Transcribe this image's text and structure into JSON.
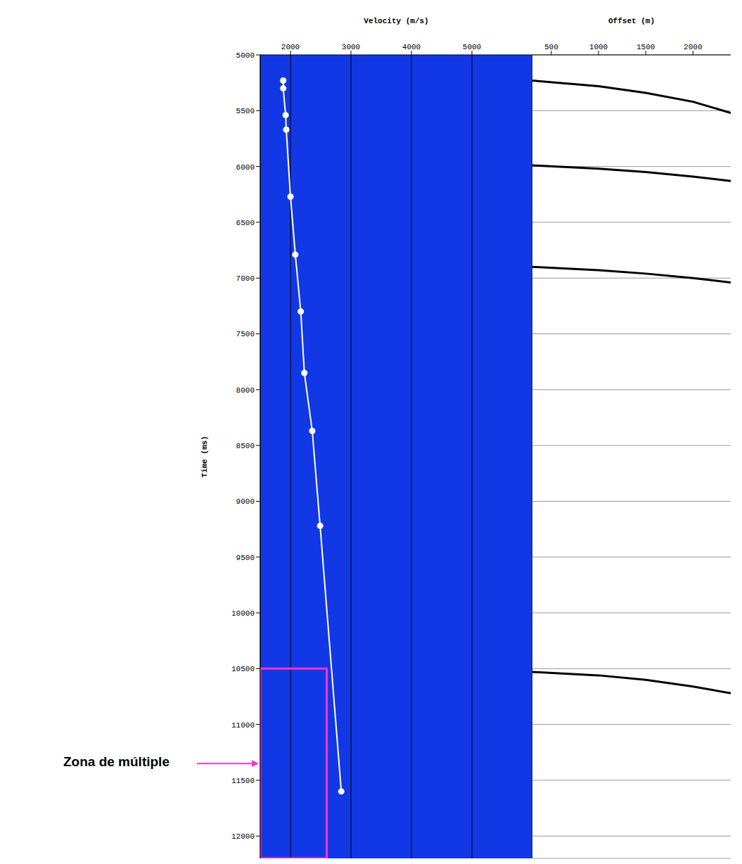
{
  "chart_data": [
    {
      "type": "scatter",
      "x_label": "Velocity (m/s)",
      "y_label": "Time (ms)",
      "xlim": [
        1500,
        6000
      ],
      "xticks": [
        2000,
        3000,
        4000,
        5000
      ],
      "ylim": [
        5000,
        12200
      ],
      "yticks": [
        5000,
        5500,
        6000,
        6500,
        7000,
        7500,
        8000,
        8500,
        9000,
        9500,
        10000,
        10500,
        11000,
        11500,
        12000
      ],
      "grid": true,
      "series": [
        {
          "color": "#ffffff",
          "marker": "circle",
          "line_style": "solid",
          "x": [
            1880,
            1880,
            1920,
            1930,
            2000,
            2080,
            2170,
            2230,
            2360,
            2490,
            2840
          ],
          "values": [
            5230,
            5300,
            5540,
            5670,
            6270,
            6790,
            7300,
            7850,
            8370,
            9220,
            11600
          ]
        }
      ],
      "annotations": [
        {
          "text": "Zona de múltiple",
          "color": "#ff33cc",
          "x_range": [
            1500,
            2600
          ],
          "y_range": [
            10500,
            12200
          ]
        }
      ]
    },
    {
      "type": "line",
      "x_label": "Offset (m)",
      "xlim": [
        300,
        2400
      ],
      "xticks": [
        500,
        1000,
        1500,
        2000
      ],
      "ylim": [
        5000,
        12200
      ],
      "yticks": [
        5000,
        5500,
        6000,
        6500,
        7000,
        7500,
        8000,
        8500,
        9000,
        9500,
        10000,
        10500,
        11000,
        11500,
        12000
      ],
      "tick_labels": "x",
      "grid": true,
      "series": [
        {
          "color": "#000000",
          "line_style": "solid",
          "x": [
            300,
            1000,
            1500,
            2000,
            2400
          ],
          "values": [
            5230,
            5280,
            5340,
            5420,
            5520
          ]
        },
        {
          "color": "#000000",
          "line_style": "solid",
          "x": [
            300,
            1000,
            1500,
            2000,
            2400
          ],
          "values": [
            5990,
            6020,
            6050,
            6090,
            6130
          ]
        },
        {
          "color": "#000000",
          "line_style": "solid",
          "x": [
            300,
            1000,
            1500,
            2000,
            2400
          ],
          "values": [
            6900,
            6930,
            6960,
            7000,
            7040
          ]
        },
        {
          "color": "#000000",
          "line_style": "solid",
          "x": [
            300,
            1000,
            1500,
            2000,
            2400
          ],
          "values": [
            10530,
            10560,
            10600,
            10660,
            10720
          ]
        }
      ]
    }
  ]
}
